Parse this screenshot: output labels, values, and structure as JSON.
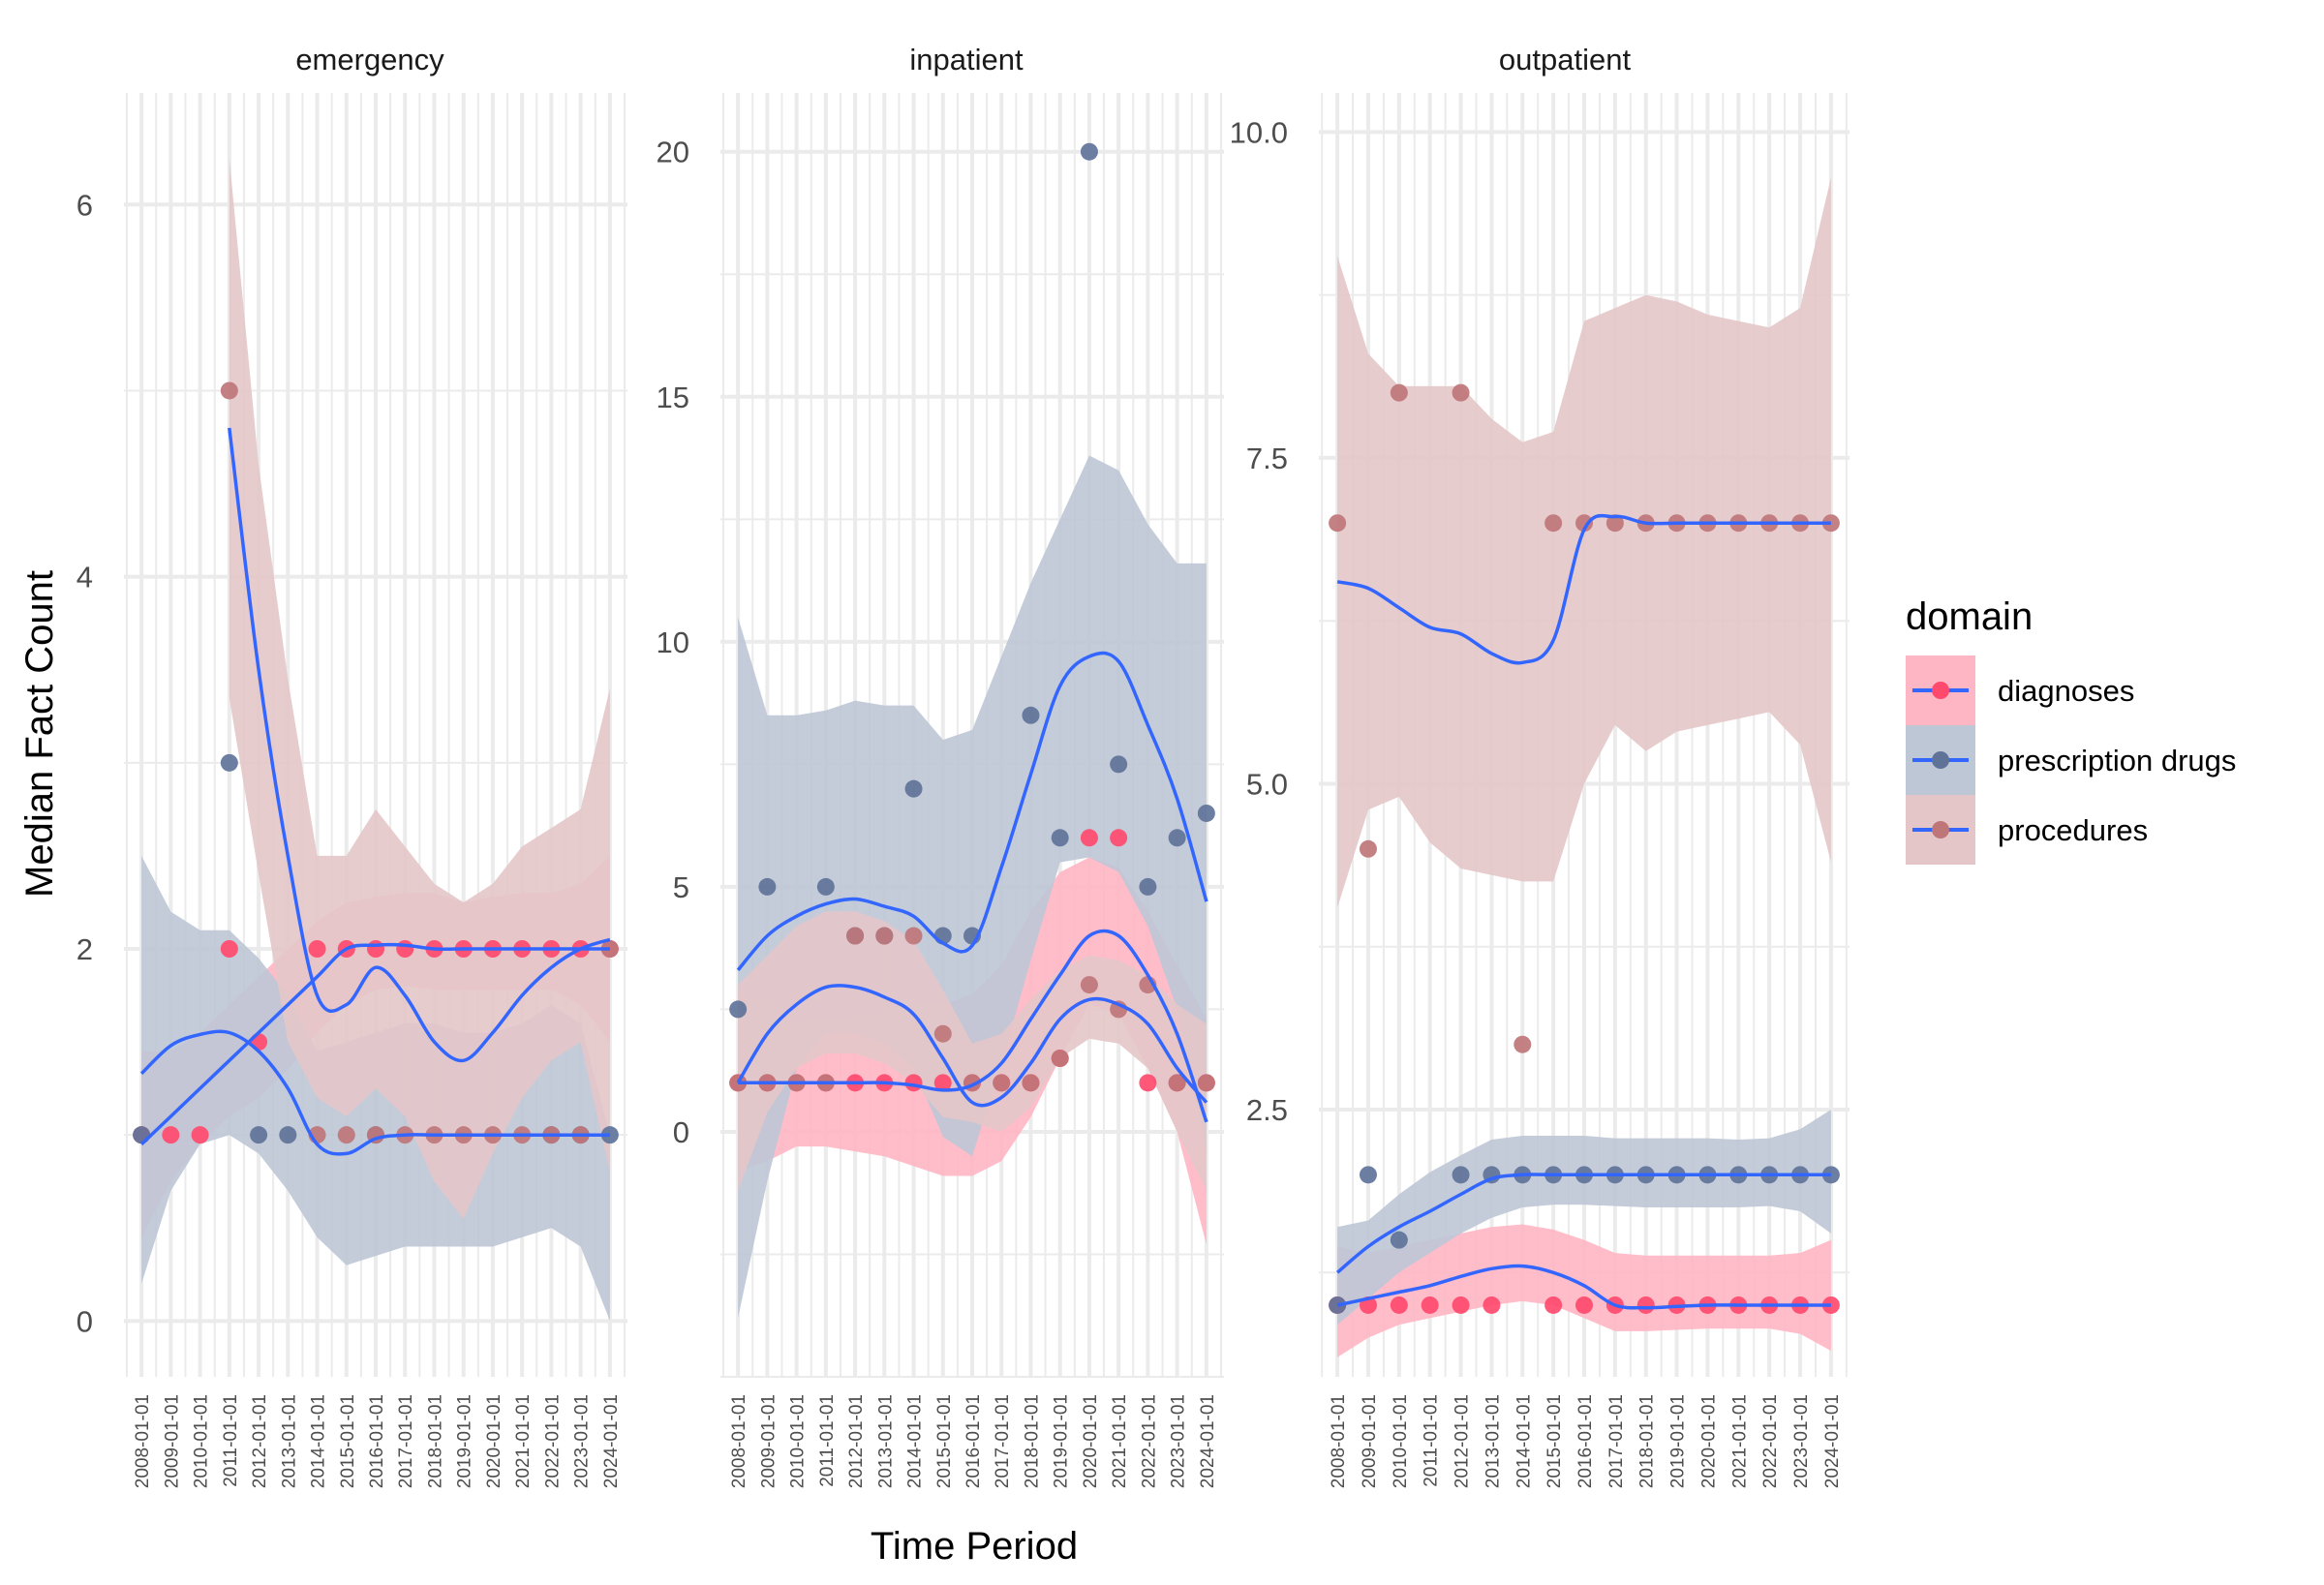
{
  "chart_data": {
    "type": "scatter",
    "subtype": "faceted scatter with loess smooth + confidence ribbons",
    "xlabel": "Time Period",
    "ylabel": "Median Fact Count",
    "x": [
      "2008-01-01",
      "2009-01-01",
      "2010-01-01",
      "2011-01-01",
      "2012-01-01",
      "2013-01-01",
      "2014-01-01",
      "2015-01-01",
      "2016-01-01",
      "2017-01-01",
      "2018-01-01",
      "2019-01-01",
      "2020-01-01",
      "2021-01-01",
      "2022-01-01",
      "2023-01-01",
      "2024-01-01"
    ],
    "grid": true,
    "legend": {
      "title": "domain",
      "position": "right",
      "entries": [
        {
          "name": "diagnoses",
          "point_color": "#FF4A6E",
          "ribbon_color": "#FFB6C4"
        },
        {
          "name": "prescription drugs",
          "point_color": "#5F7399",
          "ribbon_color": "#BEC7D6"
        },
        {
          "name": "procedures",
          "point_color": "#BF7679",
          "ribbon_color": "#E4C6C9"
        }
      ]
    },
    "smooth_color": "#3366FF",
    "panels": [
      {
        "title": "emergency",
        "ylim": [
          -0.3,
          6.6
        ],
        "yticks": [
          0,
          2,
          4,
          6
        ],
        "ytick_labels": [
          "0",
          "2",
          "4",
          "6"
        ],
        "series": [
          {
            "name": "diagnoses",
            "values": [
              1,
              1,
              1,
              2,
              1.5,
              null,
              2,
              2,
              2,
              2,
              2,
              2,
              2,
              2,
              2,
              2,
              2
            ],
            "smooth": [
              0.95,
              1.1,
              1.25,
              1.4,
              1.55,
              1.7,
              1.85,
              2.0,
              2.02,
              2.02,
              2.0,
              2.0,
              2.0,
              2.0,
              2.0,
              2.0,
              2.0
            ],
            "ci_low": [
              0.45,
              0.75,
              0.95,
              1.1,
              1.2,
              1.35,
              1.55,
              1.7,
              1.78,
              1.8,
              1.78,
              1.78,
              1.78,
              1.78,
              1.78,
              1.7,
              1.5
            ],
            "ci_high": [
              1.45,
              1.45,
              1.55,
              1.7,
              1.85,
              2.0,
              2.15,
              2.25,
              2.28,
              2.3,
              2.3,
              2.25,
              2.28,
              2.3,
              2.3,
              2.35,
              2.5
            ]
          },
          {
            "name": "prescription drugs",
            "values": [
              1,
              null,
              null,
              3,
              1,
              1,
              null,
              null,
              1,
              null,
              null,
              null,
              null,
              null,
              1,
              1,
              1
            ],
            "smooth": [
              1.33,
              1.48,
              1.54,
              1.55,
              1.45,
              1.25,
              0.95,
              0.9,
              0.98,
              1.0,
              1.0,
              1.0,
              1.0,
              1.0,
              1.0,
              1.0,
              1.0
            ],
            "ci_low": [
              0.2,
              0.7,
              0.95,
              1.0,
              0.9,
              0.7,
              0.45,
              0.3,
              0.35,
              0.4,
              0.4,
              0.4,
              0.4,
              0.45,
              0.5,
              0.4,
              0.0
            ],
            "ci_high": [
              2.5,
              2.2,
              2.1,
              2.1,
              1.95,
              1.75,
              1.45,
              1.5,
              1.55,
              1.6,
              1.6,
              1.55,
              1.55,
              1.6,
              1.7,
              1.6,
              1.0
            ]
          },
          {
            "name": "procedures",
            "values": [
              null,
              null,
              null,
              5,
              null,
              null,
              1,
              1,
              1,
              1,
              1,
              1,
              1,
              1,
              1,
              1,
              2
            ],
            "smooth": [
              null,
              null,
              null,
              4.8,
              3.5,
              2.5,
              1.75,
              1.7,
              1.9,
              1.75,
              1.5,
              1.4,
              1.55,
              1.75,
              1.9,
              2.0,
              2.05
            ],
            "ci_low": [
              null,
              null,
              null,
              3.35,
              2.4,
              1.5,
              1.2,
              1.1,
              1.25,
              1.1,
              0.75,
              0.55,
              0.9,
              1.2,
              1.4,
              1.5,
              0.8
            ],
            "ci_high": [
              null,
              null,
              null,
              6.25,
              4.6,
              3.45,
              2.5,
              2.5,
              2.75,
              2.55,
              2.35,
              2.25,
              2.35,
              2.55,
              2.65,
              2.75,
              3.4
            ]
          }
        ]
      },
      {
        "title": "inpatient",
        "ylim": [
          -5,
          21.2
        ],
        "yticks": [
          0,
          5,
          10,
          15,
          20
        ],
        "ytick_labels": [
          "0",
          "5",
          "10",
          "15",
          "20"
        ],
        "series": [
          {
            "name": "diagnoses",
            "values": [
              1,
              1,
              1,
              1,
              1,
              1,
              1,
              1,
              1,
              1,
              1,
              1.5,
              6,
              6,
              1,
              1,
              1
            ],
            "smooth": [
              1.0,
              1.0,
              1.0,
              1.0,
              1.0,
              1.0,
              0.95,
              0.85,
              0.95,
              1.4,
              2.3,
              3.2,
              4.0,
              4.0,
              3.2,
              2.0,
              0.2
            ],
            "ci_low": [
              -0.8,
              -0.6,
              -0.3,
              -0.3,
              -0.4,
              -0.5,
              -0.7,
              -0.9,
              -0.9,
              -0.6,
              0.3,
              1.5,
              2.6,
              2.4,
              1.3,
              0.0,
              -2.3
            ],
            "ci_high": [
              2.9,
              2.7,
              2.3,
              2.3,
              2.3,
              2.5,
              2.6,
              2.6,
              2.8,
              3.4,
              4.5,
              5.3,
              5.6,
              5.4,
              4.5,
              3.4,
              2.3
            ]
          },
          {
            "name": "prescription drugs",
            "values": [
              2.5,
              5,
              null,
              5,
              4,
              4,
              7,
              4,
              4,
              null,
              8.5,
              6,
              20,
              7.5,
              5,
              6,
              6.5
            ],
            "smooth": [
              3.3,
              4.0,
              4.4,
              4.65,
              4.75,
              4.6,
              4.4,
              3.85,
              3.8,
              5.4,
              7.3,
              9.1,
              9.7,
              9.6,
              8.3,
              6.8,
              4.7
            ],
            "ci_low": [
              -3.8,
              -1.0,
              1.3,
              2.0,
              2.0,
              1.8,
              1.3,
              -0.1,
              -0.5,
              1.4,
              3.5,
              5.5,
              5.6,
              5.3,
              4.2,
              2.5,
              -0.4
            ],
            "ci_high": [
              10.5,
              8.5,
              8.5,
              8.6,
              8.8,
              8.7,
              8.7,
              8.0,
              8.2,
              9.7,
              11.2,
              12.5,
              13.8,
              13.5,
              12.4,
              11.6,
              11.6
            ]
          },
          {
            "name": "procedures",
            "values": [
              1,
              1,
              1,
              1,
              4,
              4,
              4,
              2,
              1,
              1,
              1,
              1.5,
              3,
              2.5,
              3,
              1,
              1
            ],
            "smooth": [
              1.0,
              2.0,
              2.6,
              2.95,
              2.95,
              2.75,
              2.4,
              1.5,
              0.6,
              0.7,
              1.4,
              2.3,
              2.7,
              2.6,
              2.2,
              1.3,
              0.6
            ],
            "ci_low": [
              -1.2,
              0.4,
              1.3,
              1.6,
              1.6,
              1.4,
              1.0,
              0.3,
              0.2,
              0.0,
              0.5,
              1.5,
              1.9,
              1.8,
              1.3,
              0.0,
              -1.2
            ],
            "ci_high": [
              3.0,
              3.6,
              4.2,
              4.5,
              4.5,
              4.3,
              3.9,
              2.9,
              1.8,
              2.0,
              2.7,
              3.3,
              3.6,
              3.5,
              3.2,
              2.6,
              2.2
            ]
          }
        ]
      },
      {
        "title": "outpatient",
        "ylim": [
          0.45,
          10.3
        ],
        "yticks": [
          2.5,
          5.0,
          7.5,
          10.0
        ],
        "ytick_labels": [
          "2.5",
          "5.0",
          "7.5",
          "10.0"
        ],
        "series": [
          {
            "name": "diagnoses",
            "values": [
              1,
              1,
              1,
              1,
              1,
              1,
              null,
              1,
              1,
              1,
              1,
              1,
              1,
              1,
              1,
              1,
              1
            ],
            "smooth": [
              1.0,
              1.05,
              1.1,
              1.15,
              1.22,
              1.28,
              1.3,
              1.25,
              1.15,
              1.0,
              0.98,
              0.99,
              1.0,
              1.0,
              1.0,
              1.0,
              1.0
            ],
            "ci_low": [
              0.6,
              0.75,
              0.85,
              0.9,
              0.95,
              1.0,
              1.03,
              1.0,
              0.9,
              0.8,
              0.8,
              0.81,
              0.82,
              0.82,
              0.82,
              0.78,
              0.65
            ],
            "ci_high": [
              1.45,
              1.4,
              1.45,
              1.5,
              1.55,
              1.6,
              1.62,
              1.58,
              1.5,
              1.4,
              1.38,
              1.38,
              1.38,
              1.38,
              1.38,
              1.4,
              1.5
            ]
          },
          {
            "name": "prescription drugs",
            "values": [
              1,
              2,
              1.5,
              null,
              2,
              2,
              2,
              2,
              2,
              2,
              2,
              2,
              2,
              2,
              2,
              2,
              2
            ],
            "smooth": [
              1.25,
              1.45,
              1.6,
              1.72,
              1.85,
              1.97,
              2.0,
              2.0,
              2.0,
              2.0,
              2.0,
              2.0,
              2.0,
              2.0,
              2.0,
              2.0,
              2.0
            ],
            "ci_low": [
              0.85,
              1.05,
              1.25,
              1.4,
              1.55,
              1.67,
              1.75,
              1.77,
              1.77,
              1.76,
              1.75,
              1.75,
              1.75,
              1.75,
              1.76,
              1.72,
              1.55
            ],
            "ci_high": [
              1.6,
              1.65,
              1.85,
              2.02,
              2.15,
              2.27,
              2.3,
              2.3,
              2.3,
              2.28,
              2.28,
              2.28,
              2.28,
              2.27,
              2.28,
              2.35,
              2.5
            ]
          },
          {
            "name": "procedures",
            "values": [
              7,
              4.5,
              8,
              null,
              8,
              null,
              3,
              7,
              7,
              7,
              7,
              7,
              7,
              7,
              7,
              7,
              7
            ],
            "smooth": [
              6.55,
              6.5,
              6.35,
              6.2,
              6.15,
              6.0,
              5.93,
              6.1,
              6.95,
              7.05,
              7.0,
              7.0,
              7.0,
              7.0,
              7.0,
              7.0,
              7.0
            ],
            "ci_low": [
              4.05,
              4.8,
              4.9,
              4.55,
              4.35,
              4.3,
              4.25,
              4.25,
              5.0,
              5.45,
              5.25,
              5.4,
              5.45,
              5.5,
              5.55,
              5.3,
              4.4
            ],
            "ci_high": [
              9.05,
              8.3,
              8.05,
              8.05,
              8.05,
              7.8,
              7.62,
              7.7,
              8.55,
              8.65,
              8.75,
              8.7,
              8.6,
              8.55,
              8.5,
              8.65,
              9.65
            ]
          }
        ]
      }
    ]
  }
}
